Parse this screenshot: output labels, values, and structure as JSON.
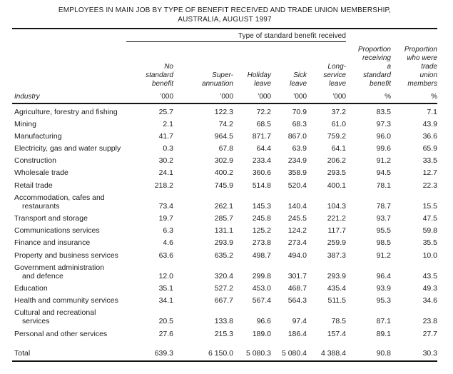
{
  "title": {
    "line1": "EMPLOYEES IN MAIN JOB BY TYPE OF BENEFIT RECEIVED AND TRADE UNION MEMBERSHIP,",
    "line2": "AUSTRALIA, AUGUST 1997"
  },
  "table": {
    "spanner": "Type of standard benefit received",
    "row_header": "Industry",
    "columns": [
      {
        "label_lines": [
          "No",
          "standard",
          "benefit"
        ],
        "unit": "’000"
      },
      {
        "label_lines": [
          "Super-",
          "annuation"
        ],
        "unit": "’000"
      },
      {
        "label_lines": [
          "Holiday",
          "leave"
        ],
        "unit": "’000"
      },
      {
        "label_lines": [
          "Sick",
          "leave"
        ],
        "unit": "’000"
      },
      {
        "label_lines": [
          "Long-",
          "service",
          "leave"
        ],
        "unit": "’000"
      },
      {
        "label_lines": [
          "Proportion",
          "receiving",
          "a",
          "standard",
          "benefit"
        ],
        "unit": "%"
      },
      {
        "label_lines": [
          "Proportion",
          "who were",
          "trade",
          "union",
          "members"
        ],
        "unit": "%"
      }
    ],
    "rows": [
      {
        "industry": [
          "Agriculture, forestry and fishing"
        ],
        "values": [
          "25.7",
          "122.3",
          "72.2",
          "70.9",
          "37.2",
          "83.5",
          "7.1"
        ]
      },
      {
        "industry": [
          "Mining"
        ],
        "values": [
          "2.1",
          "74.2",
          "68.5",
          "68.3",
          "61.0",
          "97.3",
          "43.9"
        ]
      },
      {
        "industry": [
          "Manufacturing"
        ],
        "values": [
          "41.7",
          "964.5",
          "871.7",
          "867.0",
          "759.2",
          "96.0",
          "36.6"
        ]
      },
      {
        "industry": [
          "Electricity, gas and water supply"
        ],
        "values": [
          "0.3",
          "67.8",
          "64.4",
          "63.9",
          "64.1",
          "99.6",
          "65.9"
        ]
      },
      {
        "industry": [
          "Construction"
        ],
        "values": [
          "30.2",
          "302.9",
          "233.4",
          "234.9",
          "206.2",
          "91.2",
          "33.5"
        ]
      },
      {
        "industry": [
          "Wholesale trade"
        ],
        "values": [
          "24.1",
          "400.2",
          "360.6",
          "358.9",
          "293.5",
          "94.5",
          "12.7"
        ]
      },
      {
        "industry": [
          "Retail trade"
        ],
        "values": [
          "218.2",
          "745.9",
          "514.8",
          "520.4",
          "400.1",
          "78.1",
          "22.3"
        ]
      },
      {
        "industry": [
          "Accommodation, cafes and",
          "restaurants"
        ],
        "values": [
          "73.4",
          "262.1",
          "145.3",
          "140.4",
          "104.3",
          "78.7",
          "15.5"
        ]
      },
      {
        "industry": [
          "Transport and storage"
        ],
        "values": [
          "19.7",
          "285.7",
          "245.8",
          "245.5",
          "221.2",
          "93.7",
          "47.5"
        ]
      },
      {
        "industry": [
          "Communications services"
        ],
        "values": [
          "6.3",
          "131.1",
          "125.2",
          "124.2",
          "117.7",
          "95.5",
          "59.8"
        ]
      },
      {
        "industry": [
          "Finance and insurance"
        ],
        "values": [
          "4.6",
          "293.9",
          "273.8",
          "273.4",
          "259.9",
          "98.5",
          "35.5"
        ]
      },
      {
        "industry": [
          "Property and business services"
        ],
        "values": [
          "63.6",
          "635.2",
          "498.7",
          "494.0",
          "387.3",
          "91.2",
          "10.0"
        ]
      },
      {
        "industry": [
          "Government administration",
          "and defence"
        ],
        "values": [
          "12.0",
          "320.4",
          "299.8",
          "301.7",
          "293.9",
          "96.4",
          "43.5"
        ]
      },
      {
        "industry": [
          "Education"
        ],
        "values": [
          "35.1",
          "527.2",
          "453.0",
          "468.7",
          "435.4",
          "93.9",
          "49.3"
        ]
      },
      {
        "industry": [
          "Health and community services"
        ],
        "values": [
          "34.1",
          "667.7",
          "567.4",
          "564.3",
          "511.5",
          "95.3",
          "34.6"
        ]
      },
      {
        "industry": [
          "Cultural and recreational",
          "services"
        ],
        "values": [
          "20.5",
          "133.8",
          "96.6",
          "97.4",
          "78.5",
          "87.1",
          "23.8"
        ]
      },
      {
        "industry": [
          "Personal and other services"
        ],
        "values": [
          "27.6",
          "215.3",
          "189.0",
          "186.4",
          "157.4",
          "89.1",
          "27.7"
        ]
      }
    ],
    "total": {
      "label": "Total",
      "values": [
        "639.3",
        "6 150.0",
        "5 080.3",
        "5 080.4",
        "4 388.4",
        "90.8",
        "30.3"
      ]
    }
  }
}
